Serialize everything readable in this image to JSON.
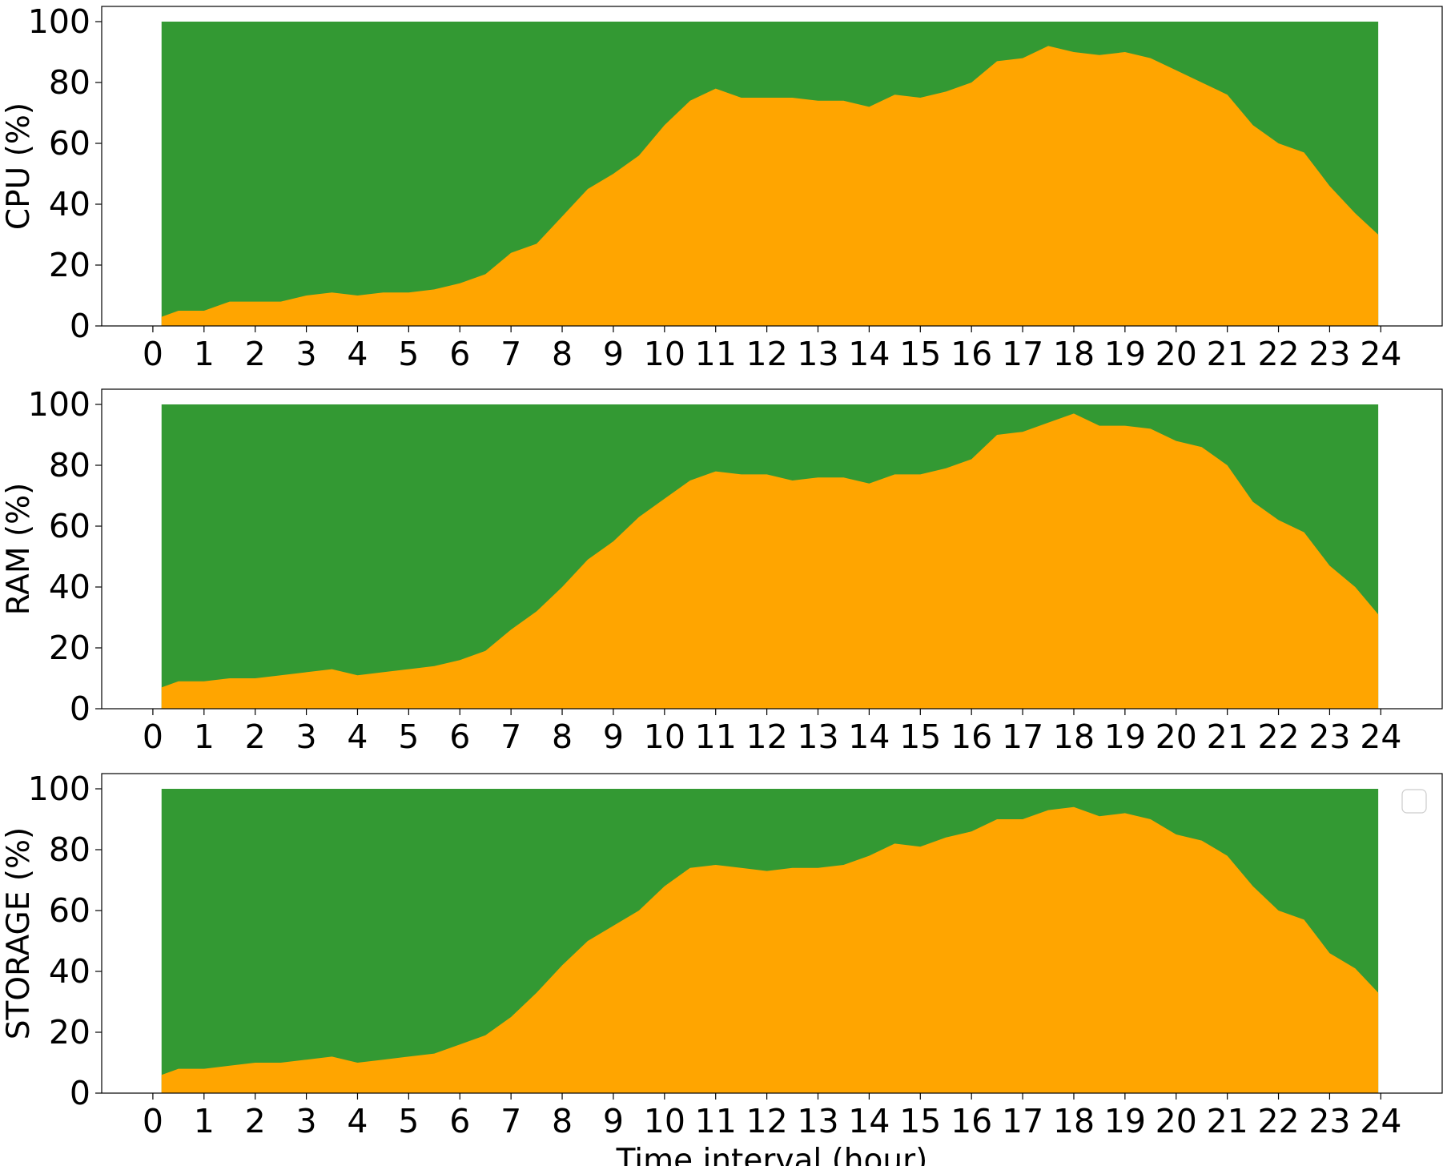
{
  "chart_data": [
    {
      "type": "area",
      "ylabel": "CPU (%)",
      "x": [
        0.17,
        0.5,
        1,
        1.5,
        2,
        2.5,
        3,
        3.5,
        4,
        4.5,
        5,
        5.5,
        6,
        6.5,
        7,
        7.5,
        8,
        8.5,
        9,
        9.5,
        10,
        10.5,
        11,
        11.5,
        12,
        12.5,
        13,
        13.5,
        14,
        14.5,
        15,
        15.5,
        16,
        16.5,
        17,
        17.5,
        18,
        18.5,
        19,
        19.5,
        20,
        20.5,
        21,
        21.5,
        22,
        22.5,
        23,
        23.5,
        23.95
      ],
      "series": [
        {
          "color": "#339933",
          "x": [
            0.17,
            23.95
          ],
          "values": [
            100,
            100
          ]
        },
        {
          "color": "#ffa500",
          "values": [
            3,
            5,
            5,
            8,
            8,
            8,
            10,
            11,
            10,
            11,
            11,
            12,
            14,
            17,
            24,
            27,
            36,
            45,
            50,
            56,
            66,
            74,
            78,
            75,
            75,
            75,
            74,
            74,
            72,
            76,
            75,
            77,
            80,
            87,
            88,
            92,
            90,
            89,
            90,
            88,
            84,
            80,
            76,
            66,
            60,
            57,
            46,
            37,
            30
          ]
        }
      ],
      "xlim": [
        -1,
        25.2
      ],
      "ylim": [
        0,
        105
      ],
      "xticks": [
        0,
        1,
        2,
        3,
        4,
        5,
        6,
        7,
        8,
        9,
        10,
        11,
        12,
        13,
        14,
        15,
        16,
        17,
        18,
        19,
        20,
        21,
        22,
        23,
        24
      ],
      "yticks": [
        0,
        20,
        40,
        60,
        80,
        100
      ]
    },
    {
      "type": "area",
      "ylabel": "RAM (%)",
      "x": [
        0.17,
        0.5,
        1,
        1.5,
        2,
        2.5,
        3,
        3.5,
        4,
        4.5,
        5,
        5.5,
        6,
        6.5,
        7,
        7.5,
        8,
        8.5,
        9,
        9.5,
        10,
        10.5,
        11,
        11.5,
        12,
        12.5,
        13,
        13.5,
        14,
        14.5,
        15,
        15.5,
        16,
        16.5,
        17,
        17.5,
        18,
        18.5,
        19,
        19.5,
        20,
        20.5,
        21,
        21.5,
        22,
        22.5,
        23,
        23.5,
        23.95
      ],
      "series": [
        {
          "color": "#339933",
          "x": [
            0.17,
            23.95
          ],
          "values": [
            100,
            100
          ]
        },
        {
          "color": "#ffa500",
          "values": [
            7,
            9,
            9,
            10,
            10,
            11,
            12,
            13,
            11,
            12,
            13,
            14,
            16,
            19,
            26,
            32,
            40,
            49,
            55,
            63,
            69,
            75,
            78,
            77,
            77,
            75,
            76,
            76,
            74,
            77,
            77,
            79,
            82,
            90,
            91,
            94,
            97,
            93,
            93,
            92,
            88,
            86,
            80,
            68,
            62,
            58,
            47,
            40,
            31
          ]
        }
      ],
      "xlim": [
        -1,
        25.2
      ],
      "ylim": [
        0,
        105
      ],
      "xticks": [
        0,
        1,
        2,
        3,
        4,
        5,
        6,
        7,
        8,
        9,
        10,
        11,
        12,
        13,
        14,
        15,
        16,
        17,
        18,
        19,
        20,
        21,
        22,
        23,
        24
      ],
      "yticks": [
        0,
        20,
        40,
        60,
        80,
        100
      ]
    },
    {
      "type": "area",
      "ylabel": "STORAGE (%)",
      "xlabel": "Time interval (hour)",
      "legend": "upper right",
      "x": [
        0.17,
        0.5,
        1,
        1.5,
        2,
        2.5,
        3,
        3.5,
        4,
        4.5,
        5,
        5.5,
        6,
        6.5,
        7,
        7.5,
        8,
        8.5,
        9,
        9.5,
        10,
        10.5,
        11,
        11.5,
        12,
        12.5,
        13,
        13.5,
        14,
        14.5,
        15,
        15.5,
        16,
        16.5,
        17,
        17.5,
        18,
        18.5,
        19,
        19.5,
        20,
        20.5,
        21,
        21.5,
        22,
        22.5,
        23,
        23.5,
        23.95
      ],
      "series": [
        {
          "color": "#339933",
          "x": [
            0.17,
            23.95
          ],
          "values": [
            100,
            100
          ]
        },
        {
          "color": "#ffa500",
          "values": [
            6,
            8,
            8,
            9,
            10,
            10,
            11,
            12,
            10,
            11,
            12,
            13,
            16,
            19,
            25,
            33,
            42,
            50,
            55,
            60,
            68,
            74,
            75,
            74,
            73,
            74,
            74,
            75,
            78,
            82,
            81,
            84,
            86,
            90,
            90,
            93,
            94,
            91,
            92,
            90,
            85,
            83,
            78,
            68,
            60,
            57,
            46,
            41,
            33
          ]
        }
      ],
      "xlim": [
        -1,
        25.2
      ],
      "ylim": [
        0,
        105
      ],
      "xticks": [
        0,
        1,
        2,
        3,
        4,
        5,
        6,
        7,
        8,
        9,
        10,
        11,
        12,
        13,
        14,
        15,
        16,
        17,
        18,
        19,
        20,
        21,
        22,
        23,
        24
      ],
      "yticks": [
        0,
        20,
        40,
        60,
        80,
        100
      ]
    }
  ]
}
